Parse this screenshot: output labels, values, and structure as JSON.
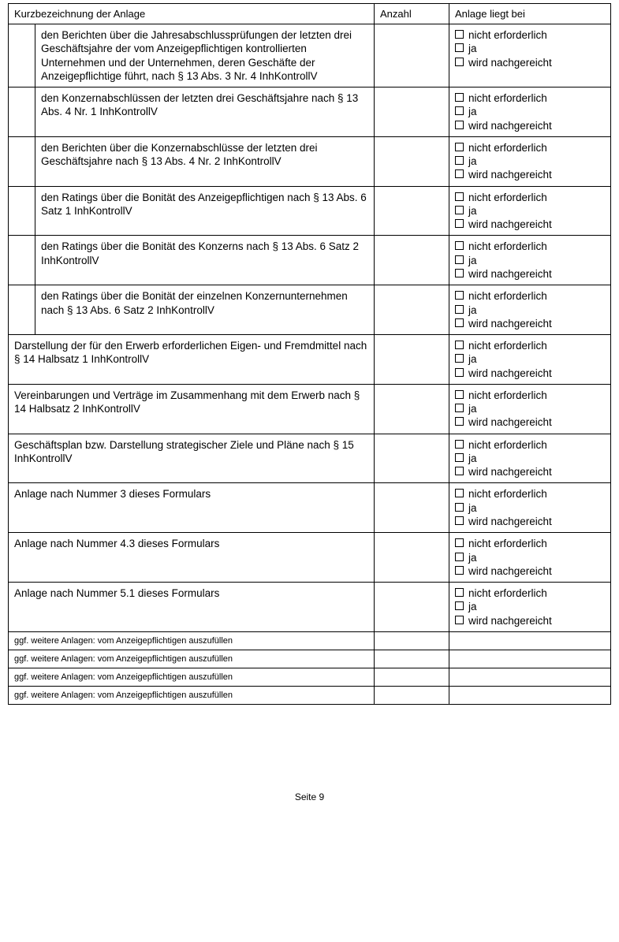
{
  "header": {
    "col1": "Kurzbezeichnung der Anlage",
    "col2": "Anzahl",
    "col3": "Anlage liegt bei"
  },
  "options": {
    "opt1": "nicht erforderlich",
    "opt2": "ja",
    "opt3": "wird nachgereicht"
  },
  "indented_rows": [
    "den Berichten über die Jahresabschlussprüfungen der letzten drei Geschäftsjahre der vom Anzeigepflichtigen kontrollierten Unternehmen und der Unternehmen, deren Geschäfte der Anzeigepflichtige führt, nach § 13 Abs. 3 Nr. 4 InhKontrollV",
    "den Konzernabschlüssen der letzten drei Geschäftsjahre nach § 13 Abs. 4 Nr. 1 InhKontrollV",
    "den Berichten über die Konzernabschlüsse der letzten drei Geschäftsjahre nach § 13 Abs. 4 Nr. 2 InhKontrollV",
    "den Ratings über die Bonität des Anzeigepflichtigen nach § 13 Abs. 6 Satz 1 InhKontrollV",
    "den Ratings über die Bonität des Konzerns nach § 13 Abs. 6 Satz 2 InhKontrollV",
    "den Ratings über die Bonität der einzelnen Konzern­unternehmen nach § 13 Abs. 6 Satz 2 InhKontrollV"
  ],
  "full_rows": [
    "Darstellung der für den Erwerb erforderlichen Eigen- und Fremdmittel nach § 14 Halbsatz 1 InhKontrollV",
    "Vereinbarungen und Verträge im Zusammenhang mit dem Erwerb nach § 14 Halbsatz 2 InhKontrollV",
    "Geschäftsplan bzw. Darstellung strategischer Ziele und Pläne nach § 15 InhKontrollV",
    "Anlage nach Nummer 3 dieses Formulars",
    "Anlage nach Nummer 4.3 dieses Formulars",
    "Anlage nach Nummer 5.1 dieses Formulars"
  ],
  "blank_row_text": "ggf. weitere Anlagen: vom Anzeigepflichtigen auszufüllen",
  "blank_row_count": 4,
  "footer": "Seite 9"
}
